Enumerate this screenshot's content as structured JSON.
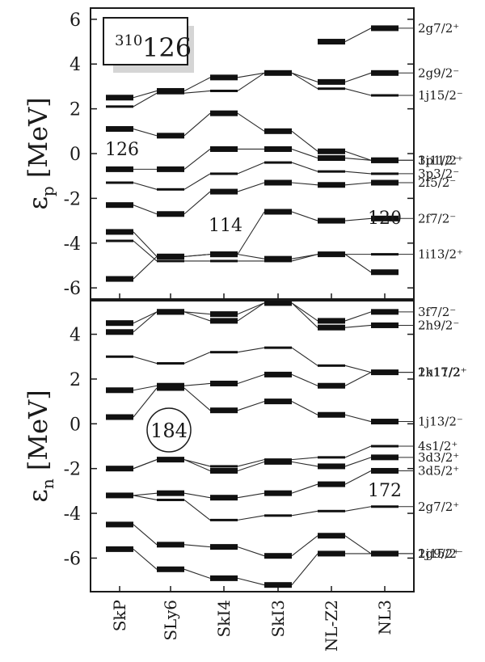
{
  "chart_data": [
    {
      "type": "line",
      "panel": "proton",
      "ylabel_symbol": "ε",
      "ylabel_sub": "p",
      "ylabel_unit": "[MeV]",
      "ylim": [
        -6.5,
        6.5
      ],
      "yticks": [
        6,
        4,
        2,
        0,
        -2,
        -4,
        -6
      ],
      "categories": [
        "SkP",
        "SLy6",
        "SkI4",
        "SkI3",
        "NL-Z2",
        "NL3"
      ],
      "nucleus_mass": "310",
      "nucleus_z": "126",
      "gap_labels": [
        "126",
        "114",
        "120"
      ],
      "levels": [
        {
          "label": "2g7/2⁺",
          "values": [
            null,
            null,
            null,
            null,
            5.0,
            5.6
          ]
        },
        {
          "label": "2g9/2⁻",
          "values": [
            2.5,
            2.8,
            3.4,
            3.6,
            3.2,
            3.6
          ]
        },
        {
          "label": "1j15/2⁻",
          "values": [
            2.1,
            2.7,
            2.8,
            3.6,
            2.9,
            2.6
          ]
        },
        {
          "label": "1i11/2⁺",
          "values": [
            1.1,
            0.8,
            1.8,
            1.0,
            0.1,
            -0.3
          ]
        },
        {
          "label": "3p1/2⁻",
          "values": [
            -0.7,
            -0.7,
            0.2,
            0.2,
            -0.2,
            -0.3
          ]
        },
        {
          "label": "3p3/2⁻",
          "values": [
            -1.3,
            -1.6,
            -0.9,
            -0.4,
            -0.8,
            -0.9
          ]
        },
        {
          "label": "2f5/2⁻",
          "values": [
            -2.3,
            -2.7,
            -1.7,
            -1.3,
            -1.4,
            -1.3
          ]
        },
        {
          "label": "2f7/2⁻",
          "values": [
            -3.5,
            -4.6,
            -4.5,
            -2.6,
            -3.0,
            -2.9
          ]
        },
        {
          "label": "1i13/2⁺",
          "values": [
            -3.9,
            -4.8,
            -4.8,
            -4.8,
            -4.5,
            -4.5
          ]
        },
        {
          "label": "",
          "values": [
            -5.6,
            -4.6,
            -4.5,
            -4.7,
            -4.5,
            -5.3
          ]
        }
      ]
    },
    {
      "type": "line",
      "panel": "neutron",
      "ylabel_symbol": "ε",
      "ylabel_sub": "n",
      "ylabel_unit": "[MeV]",
      "ylim": [
        -7.5,
        5.5
      ],
      "yticks": [
        4,
        2,
        0,
        -2,
        -4,
        -6
      ],
      "categories": [
        "SkP",
        "SLy6",
        "SkI4",
        "SkI3",
        "NL-Z2",
        "NL3"
      ],
      "gap_labels": [
        "184",
        "172"
      ],
      "levels": [
        {
          "label": "3f7/2⁻",
          "values": [
            4.5,
            5.0,
            4.9,
            5.4,
            4.6,
            5.0
          ]
        },
        {
          "label": "2h9/2⁻",
          "values": [
            4.1,
            5.0,
            4.6,
            5.4,
            4.3,
            4.4
          ]
        },
        {
          "label": "1k17/2⁺",
          "values": [
            3.0,
            2.7,
            3.2,
            3.4,
            2.6,
            2.3
          ]
        },
        {
          "label": "2h11/2⁻",
          "values": [
            1.5,
            1.7,
            1.8,
            2.2,
            1.7,
            2.3
          ]
        },
        {
          "label": "1j13/2⁻",
          "values": [
            0.3,
            1.6,
            0.6,
            1.0,
            0.4,
            0.1
          ]
        },
        {
          "label": "4s1/2⁺",
          "values": [
            -2.0,
            -1.6,
            -1.9,
            -1.6,
            -1.5,
            -1.0
          ]
        },
        {
          "label": "3d3/2⁺",
          "values": [
            -2.0,
            -1.6,
            -2.1,
            -1.7,
            -1.9,
            -1.5
          ]
        },
        {
          "label": "3d5/2⁺",
          "values": [
            -3.2,
            -3.1,
            -3.3,
            -3.1,
            -2.7,
            -2.1
          ]
        },
        {
          "label": "2g7/2⁺",
          "values": [
            -3.2,
            -3.4,
            -4.3,
            -4.1,
            -3.9,
            -3.7
          ]
        },
        {
          "label": "2g9/2⁺",
          "values": [
            -4.5,
            -5.4,
            -5.5,
            -5.9,
            -5.0,
            -5.8
          ]
        },
        {
          "label": "1j15/2⁻",
          "values": [
            -5.6,
            -6.5,
            -6.9,
            -7.2,
            -5.8,
            -5.8
          ]
        }
      ]
    }
  ]
}
